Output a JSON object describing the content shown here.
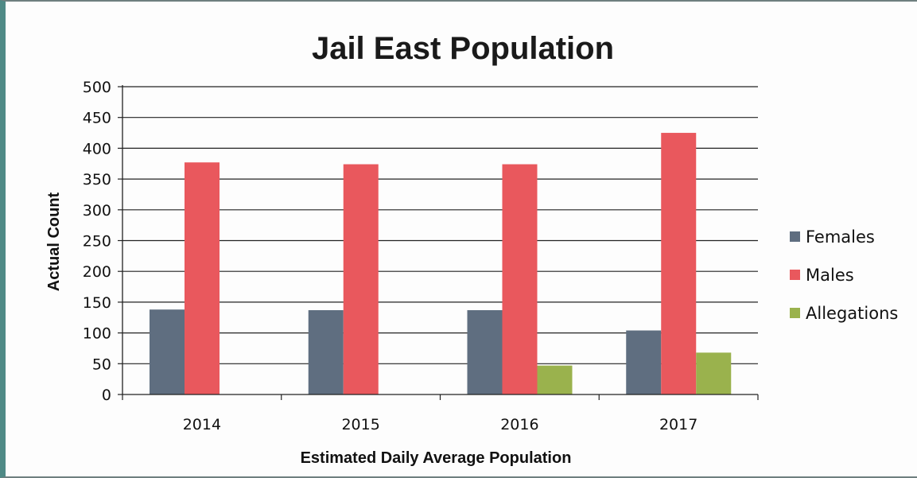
{
  "chart_data": {
    "type": "bar",
    "title": "Jail East Population",
    "xlabel": "Estimated Daily Average Population",
    "ylabel": "Actual Count",
    "categories": [
      "2014",
      "2015",
      "2016",
      "2017"
    ],
    "series": [
      {
        "name": "Females",
        "color": "#5f6e80",
        "values": [
          138,
          137,
          137,
          104
        ]
      },
      {
        "name": "Males",
        "color": "#e9585d",
        "values": [
          377,
          374,
          374,
          425
        ]
      },
      {
        "name": "Allegations",
        "color": "#9ab24d",
        "values": [
          null,
          null,
          47,
          68
        ]
      }
    ],
    "ylim": [
      0,
      500
    ],
    "yticks": [
      "0",
      "50",
      "100",
      "150",
      "200",
      "250",
      "300",
      "350",
      "400",
      "450",
      "500"
    ],
    "grid": true,
    "legend_position": "right"
  }
}
